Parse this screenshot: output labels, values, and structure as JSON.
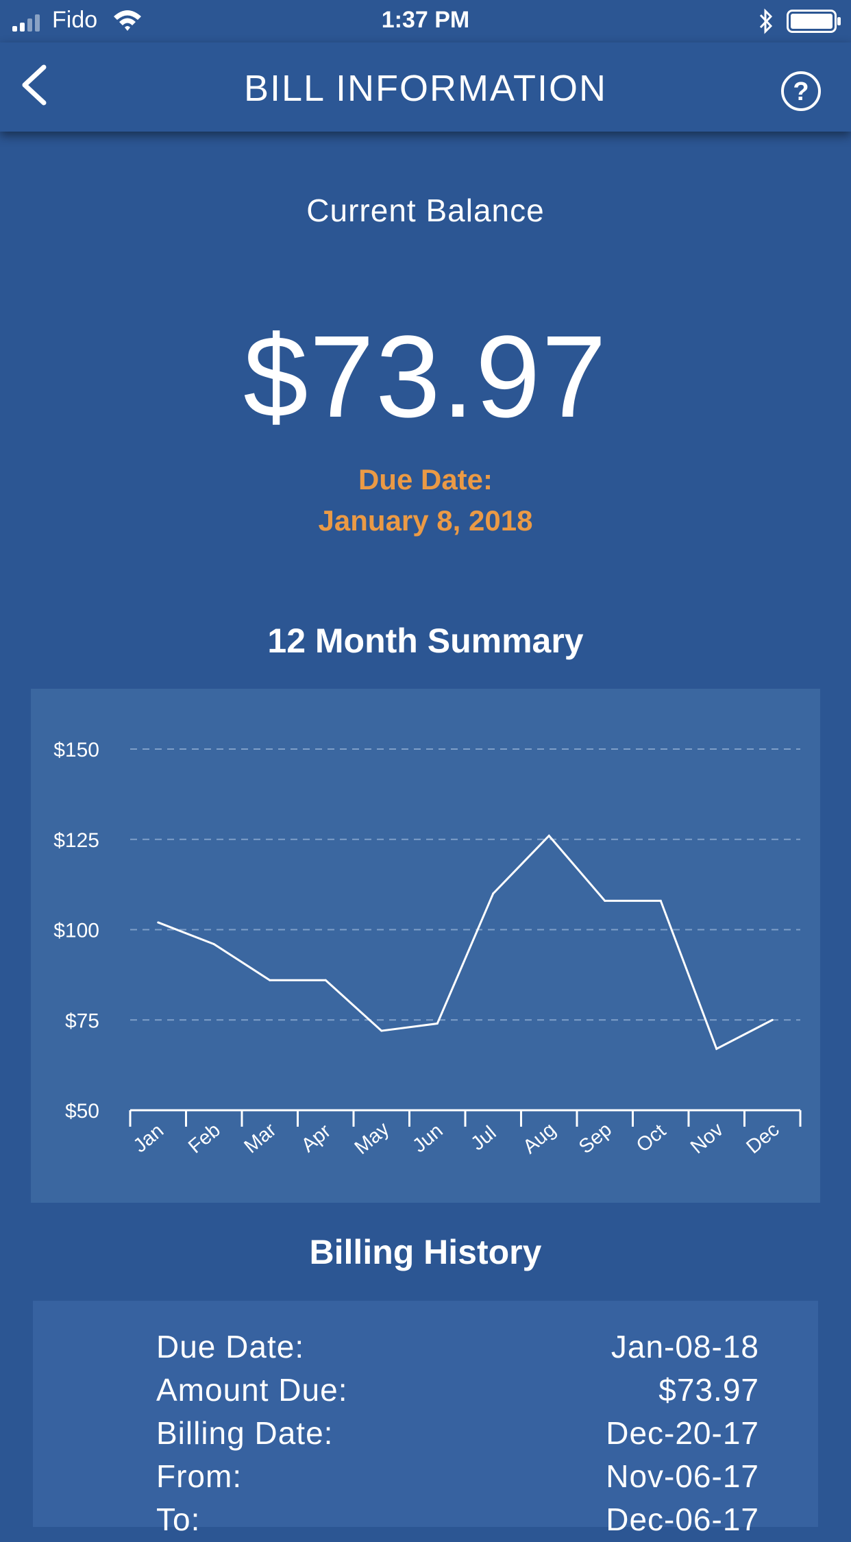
{
  "status_bar": {
    "carrier": "Fido",
    "time": "1:37 PM",
    "icons": [
      "signal-icon",
      "wifi-icon",
      "bluetooth-icon",
      "battery-icon"
    ]
  },
  "nav": {
    "title": "BILL INFORMATION",
    "back_icon": "chevron-left-icon",
    "help_icon": "help-circle-icon"
  },
  "balance": {
    "label": "Current Balance",
    "amount": "$73.97",
    "due_label": "Due Date:",
    "due_date": "January 8, 2018"
  },
  "summary": {
    "title": "12 Month Summary"
  },
  "chart_data": {
    "type": "line",
    "categories": [
      "Jan",
      "Feb",
      "Mar",
      "Apr",
      "May",
      "Jun",
      "Jul",
      "Aug",
      "Sep",
      "Oct",
      "Nov",
      "Dec"
    ],
    "values": [
      102,
      96,
      86,
      86,
      72,
      74,
      110,
      126,
      108,
      108,
      67,
      75
    ],
    "y_ticks": [
      "$150",
      "$125",
      "$100",
      "$75",
      "$50"
    ],
    "ylim": [
      50,
      150
    ],
    "grid": "dashed horizontal",
    "colors": {
      "line": "#ffffff",
      "grid": "#7f9fc8",
      "panel": "#3b67a0"
    }
  },
  "billing_history": {
    "title": "Billing History",
    "rows": [
      {
        "label": "Due Date:",
        "value": "Jan-08-18"
      },
      {
        "label": "Amount Due:",
        "value": "$73.97"
      },
      {
        "label": "Billing Date:",
        "value": "Dec-20-17"
      },
      {
        "label": "From:",
        "value": "Nov-06-17"
      },
      {
        "label": "To:",
        "value": "Dec-06-17"
      }
    ]
  },
  "colors": {
    "background": "#2c5693",
    "accent": "#eb9a45",
    "text": "#ffffff"
  }
}
